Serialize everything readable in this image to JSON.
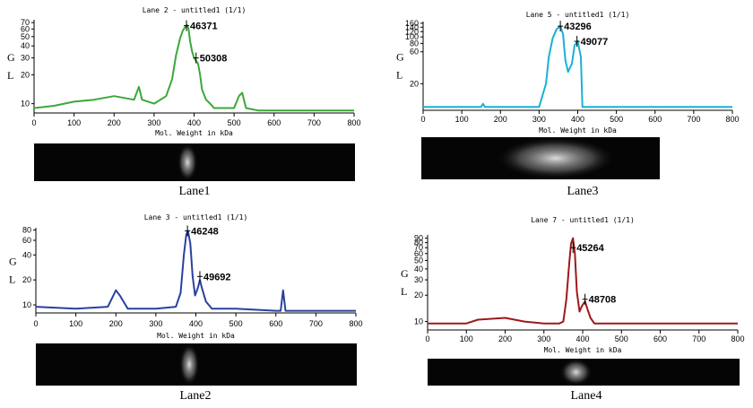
{
  "panels": [
    {
      "title": "Lane 2 - untitled1 (1/1)",
      "caption": "Lane1",
      "color": "#3aa83a",
      "xlabel": "Mol. Weight in kDa",
      "ylabel": "G\nL",
      "peak_labels": [
        {
          "x": 381,
          "y": 65,
          "text": "46371"
        },
        {
          "x": 405,
          "y": 30,
          "text": "50308"
        }
      ]
    },
    {
      "title": "Lane 5 - untitled1 (1/1)",
      "caption": "Lane3",
      "color": "#1ab0d8",
      "xlabel": "Mol. Weight in kDa",
      "ylabel": "G\nL",
      "peak_labels": [
        {
          "x": 355,
          "y": 145,
          "text": "43296"
        },
        {
          "x": 398,
          "y": 86,
          "text": "49077"
        }
      ]
    },
    {
      "title": "Lane 3 - untitled1 (1/1)",
      "caption": "Lane2",
      "color": "#2a40a0",
      "xlabel": "Mol. Weight in kDa",
      "ylabel": "G\nL",
      "peak_labels": [
        {
          "x": 379,
          "y": 78,
          "text": "46248"
        },
        {
          "x": 410,
          "y": 22,
          "text": "49692"
        }
      ]
    },
    {
      "title": "Lane 7 - untitled1 (1/1)",
      "caption": "Lane4",
      "color": "#a01818",
      "xlabel": "Mol. Weight in kDa",
      "ylabel": "G\nL",
      "peak_labels": [
        {
          "x": 375,
          "y": 70,
          "text": "45264"
        },
        {
          "x": 406,
          "y": 18,
          "text": "48708"
        }
      ]
    }
  ],
  "chart_data": [
    {
      "type": "line",
      "title": "Lane 2 - untitled1 (1/1)",
      "xlabel": "Mol. Weight in kDa",
      "ylabel": "G L",
      "xlim": [
        0,
        800
      ],
      "ylim": [
        8,
        75
      ],
      "yscale": "log",
      "xticks": [
        0,
        100,
        200,
        300,
        400,
        500,
        600,
        700,
        800
      ],
      "yticks": [
        10,
        20,
        30,
        40,
        50,
        60,
        70
      ],
      "series": [
        {
          "x": [
            0,
            50,
            100,
            150,
            200,
            250,
            262,
            270,
            300,
            330,
            345,
            355,
            365,
            372,
            378,
            382,
            386,
            390,
            395,
            400,
            405,
            410,
            415,
            420,
            430,
            440,
            450,
            500,
            512,
            520,
            530,
            560,
            600,
            700,
            800
          ],
          "y": [
            9,
            9.5,
            10.5,
            11,
            12,
            11,
            15,
            11,
            10,
            12,
            18,
            32,
            48,
            58,
            63,
            66,
            60,
            45,
            35,
            30,
            28,
            26,
            20,
            14,
            11,
            10,
            9,
            9,
            12,
            13,
            9,
            8.5,
            8.5,
            8.5,
            8.5
          ]
        }
      ],
      "peaks": [
        {
          "x": 381,
          "label": "46371"
        },
        {
          "x": 405,
          "label": "50308"
        }
      ]
    },
    {
      "type": "line",
      "title": "Lane 5 - untitled1 (1/1)",
      "xlabel": "Mol. Weight in kDa",
      "ylabel": "G L",
      "xlim": [
        0,
        800
      ],
      "ylim": [
        8,
        170
      ],
      "yscale": "log",
      "xticks": [
        0,
        100,
        200,
        300,
        400,
        500,
        600,
        700,
        800
      ],
      "yticks": [
        20,
        60,
        80,
        100,
        120,
        140,
        160
      ],
      "series": [
        {
          "x": [
            0,
            100,
            150,
            155,
            160,
            300,
            318,
            325,
            335,
            345,
            355,
            362,
            368,
            375,
            385,
            392,
            400,
            408,
            412,
            500,
            800
          ],
          "y": [
            9,
            9,
            9,
            10,
            9,
            9,
            20,
            50,
            95,
            130,
            145,
            110,
            45,
            30,
            40,
            75,
            86,
            50,
            9,
            9,
            9
          ]
        }
      ],
      "peaks": [
        {
          "x": 355,
          "label": "43296"
        },
        {
          "x": 398,
          "label": "49077"
        }
      ]
    },
    {
      "type": "line",
      "title": "Lane 3 - untitled1 (1/1)",
      "xlabel": "Mol. Weight in kDa",
      "ylabel": "G L",
      "xlim": [
        0,
        800
      ],
      "ylim": [
        8,
        85
      ],
      "yscale": "log",
      "xticks": [
        0,
        100,
        200,
        300,
        400,
        500,
        600,
        700,
        800
      ],
      "yticks": [
        10,
        20,
        40,
        60,
        80
      ],
      "series": [
        {
          "x": [
            0,
            100,
            180,
            200,
            210,
            230,
            300,
            350,
            362,
            370,
            376,
            380,
            386,
            392,
            398,
            405,
            410,
            415,
            425,
            440,
            500,
            600,
            612,
            618,
            624,
            630,
            800
          ],
          "y": [
            9.5,
            9,
            9.5,
            15,
            13,
            9,
            9,
            9.5,
            14,
            40,
            70,
            78,
            55,
            22,
            13,
            16,
            20,
            16,
            11,
            9,
            9,
            8.5,
            8.5,
            15,
            8.5,
            8.5,
            8.5
          ]
        }
      ],
      "peaks": [
        {
          "x": 379,
          "label": "46248"
        },
        {
          "x": 410,
          "label": "49692"
        }
      ]
    },
    {
      "type": "line",
      "title": "Lane 7 - untitled1 (1/1)",
      "xlabel": "Mol. Weight in kDa",
      "ylabel": "G L",
      "xlim": [
        0,
        800
      ],
      "ylim": [
        8,
        98
      ],
      "yscale": "log",
      "xticks": [
        0,
        100,
        200,
        300,
        400,
        500,
        600,
        700,
        800
      ],
      "yticks": [
        10,
        20,
        30,
        40,
        50,
        60,
        70,
        80,
        90
      ],
      "series": [
        {
          "x": [
            0,
            100,
            130,
            200,
            250,
            300,
            340,
            350,
            358,
            365,
            370,
            375,
            380,
            385,
            392,
            398,
            406,
            412,
            420,
            430,
            800
          ],
          "y": [
            9.5,
            9.5,
            10.5,
            11,
            10,
            9.5,
            9.5,
            10,
            18,
            45,
            78,
            90,
            60,
            22,
            13,
            15,
            17,
            14,
            11,
            9.5,
            9.5
          ]
        }
      ],
      "peaks": [
        {
          "x": 375,
          "label": "45264"
        },
        {
          "x": 406,
          "label": "48708"
        }
      ]
    }
  ]
}
